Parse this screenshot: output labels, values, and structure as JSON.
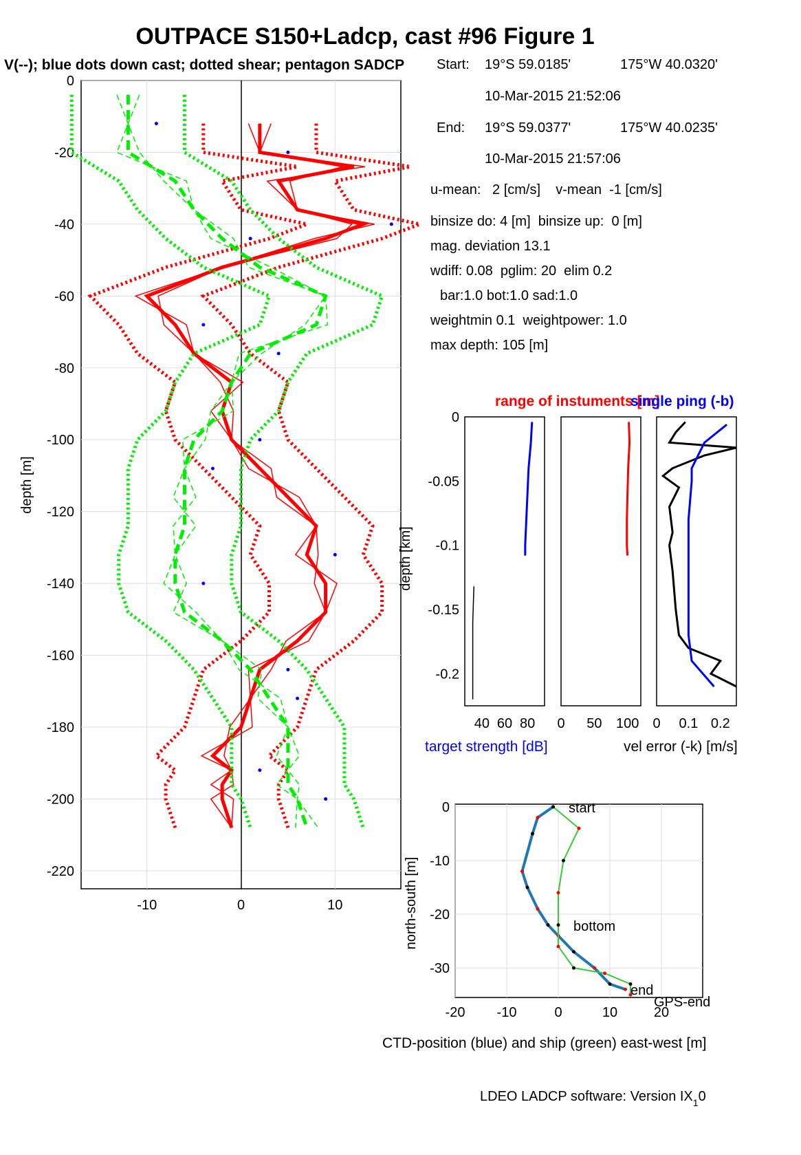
{
  "title": "OUTPACE S150+Ladcp, cast #96  Figure 1",
  "subtitle": "V(--); blue dots down cast; dotted shear; pentagon SADCP",
  "info": {
    "start_label": "Start:",
    "start_lat": "19°S 59.0185'",
    "start_lon": "175°W 40.0320'",
    "start_time": "10-Mar-2015 21:52:06",
    "end_label": "End:",
    "end_lat": "19°S 59.0377'",
    "end_lon": "175°W 40.0235'",
    "end_time": "10-Mar-2015 21:57:06",
    "line1": "u-mean:   2 [cm/s]    v-mean  -1 [cm/s]",
    "line2": "binsize do: 4 [m]  binsize up:  0 [m]",
    "line3": "mag. deviation 13.1",
    "line4": "wdiff: 0.08  pglim: 20  elim 0.2",
    "line5": "bar:1.0 bot:1.0 sad:1.0",
    "line6": "weightmin 0.1  weightpower: 1.0",
    "line7": "max depth: 105 [m]"
  },
  "footer": "LDEO LADCP software: Version IX",
  "footer_sub": "1",
  "footer_end": "0",
  "colors": {
    "u": "#ff0000",
    "v": "#00ee00",
    "dots": "#0000ff",
    "track": "#1f77b4",
    "ship": "#33cc33"
  },
  "chart_data": [
    {
      "type": "line",
      "ylabel": "depth [m]",
      "xlim": [
        -17,
        17
      ],
      "ylim": [
        -225,
        0
      ],
      "xticks": [
        -10,
        0,
        10
      ],
      "yticks": [
        0,
        -20,
        -40,
        -60,
        -80,
        -100,
        -120,
        -140,
        -160,
        -180,
        -200,
        -220
      ],
      "grid": true,
      "series": [
        {
          "name": "u",
          "color": "#ff0000",
          "depth": [
            -12,
            -20,
            -24,
            -28,
            -36,
            -40,
            -44,
            -52,
            -60,
            -68,
            -76,
            -84,
            -92,
            -100,
            -108,
            -116,
            -124,
            -132,
            -140,
            -148,
            -156,
            -164,
            -172,
            -180,
            -188,
            -192,
            -196,
            -200,
            -208
          ],
          "values": [
            2,
            2,
            12,
            4,
            6,
            13,
            9,
            -2,
            -10,
            -7,
            -5,
            -1,
            -2,
            -1,
            2,
            5,
            8,
            7,
            9,
            9,
            6,
            2,
            1,
            0,
            -3,
            -1,
            -2,
            -2,
            -1
          ]
        },
        {
          "name": "v",
          "color": "#00ee00",
          "depth": [
            -4,
            -12,
            -20,
            -28,
            -36,
            -44,
            -52,
            -60,
            -68,
            -76,
            -84,
            -92,
            -100,
            -108,
            -116,
            -124,
            -132,
            -140,
            -148,
            -156,
            -164,
            -172,
            -180,
            -188,
            -196,
            -200,
            -208
          ],
          "values": [
            -12,
            -12,
            -12,
            -7,
            -5,
            -2,
            2,
            9,
            8,
            1,
            -1,
            -2,
            -5,
            -6,
            -6,
            -6,
            -7,
            -7,
            -6,
            -2,
            1,
            3,
            5,
            5,
            5,
            6,
            7
          ]
        }
      ]
    },
    {
      "type": "line",
      "ylabel": "depth [km]",
      "xlabel": "target strength [dB]",
      "title": "range of instuments [m]",
      "xlim": [
        25,
        95
      ],
      "ylim": [
        -0.225,
        0
      ],
      "xticks": [
        40,
        60,
        80
      ],
      "yticks": [
        0,
        -0.05,
        -0.1,
        -0.15,
        -0.2
      ],
      "series": [
        {
          "name": "target strength",
          "color": "#0000ff",
          "depth": [
            -0.004,
            -0.02,
            -0.04,
            -0.06,
            -0.08,
            -0.1,
            -0.108
          ],
          "values": [
            84,
            83,
            81,
            80,
            79,
            78,
            78
          ]
        },
        {
          "name": "black",
          "color": "#000000",
          "depth": [
            -0.132,
            -0.16,
            -0.19,
            -0.22
          ],
          "values": [
            33,
            32,
            32,
            32
          ]
        }
      ]
    },
    {
      "type": "line",
      "xlim": [
        0,
        120
      ],
      "ylim": [
        -0.225,
        0
      ],
      "xticks": [
        0,
        50,
        100
      ],
      "series": [
        {
          "name": "range",
          "color": "#ff0000",
          "depth": [
            -0.004,
            -0.02,
            -0.04,
            -0.06,
            -0.08,
            -0.1,
            -0.108
          ],
          "values": [
            102,
            103,
            101,
            100,
            99,
            99,
            100
          ]
        }
      ]
    },
    {
      "type": "line",
      "title": "single ping (-b)",
      "xlabel": "vel error (-k) [m/s]",
      "xlim": [
        0,
        0.25
      ],
      "ylim": [
        -0.225,
        0
      ],
      "xticks": [
        0,
        0.1,
        0.2
      ],
      "series": [
        {
          "name": "vel error",
          "color": "#000000",
          "depth": [
            -0.004,
            -0.012,
            -0.02,
            -0.024,
            -0.03,
            -0.04,
            -0.046,
            -0.055,
            -0.07,
            -0.09,
            -0.1,
            -0.12,
            -0.15,
            -0.17,
            -0.18,
            -0.19,
            -0.2,
            -0.21
          ],
          "values": [
            0.09,
            0.06,
            0.04,
            0.25,
            0.15,
            0.05,
            0.02,
            0.07,
            0.04,
            0.05,
            0.04,
            0.05,
            0.06,
            0.07,
            0.1,
            0.2,
            0.17,
            0.25
          ]
        },
        {
          "name": "single ping",
          "color": "#0000ff",
          "depth": [
            -0.006,
            -0.02,
            -0.04,
            -0.05,
            -0.08,
            -0.12,
            -0.17,
            -0.19,
            -0.21
          ],
          "values": [
            0.22,
            0.15,
            0.11,
            0.11,
            0.1,
            0.1,
            0.1,
            0.11,
            0.18
          ]
        }
      ]
    },
    {
      "type": "line",
      "xlabel": "CTD-position (blue) and ship (green) east-west [m]",
      "ylabel": "north-south [m]",
      "xlim": [
        -20,
        28
      ],
      "ylim": [
        -35.5,
        0.5
      ],
      "xticks": [
        -20,
        -10,
        0,
        10,
        20
      ],
      "yticks": [
        0,
        -10,
        -20,
        -30
      ],
      "annotations": [
        "start",
        "bottom",
        "end",
        "GPS-end"
      ],
      "series": [
        {
          "name": "CTD-position",
          "color": "#1f77b4",
          "x": [
            -1,
            -4,
            -5,
            -7,
            -6,
            -4,
            -2,
            0,
            3,
            7,
            10,
            13
          ],
          "y": [
            0,
            -2,
            -5,
            -12,
            -15,
            -19,
            -22,
            -24,
            -27,
            -30,
            -33,
            -34
          ]
        },
        {
          "name": "ship",
          "color": "#33cc33",
          "x": [
            -1,
            4,
            1,
            0,
            0,
            0,
            3,
            9,
            14,
            14
          ],
          "y": [
            0,
            -4,
            -10,
            -16,
            -22,
            -26,
            -30,
            -31,
            -33,
            -35
          ]
        }
      ]
    }
  ]
}
